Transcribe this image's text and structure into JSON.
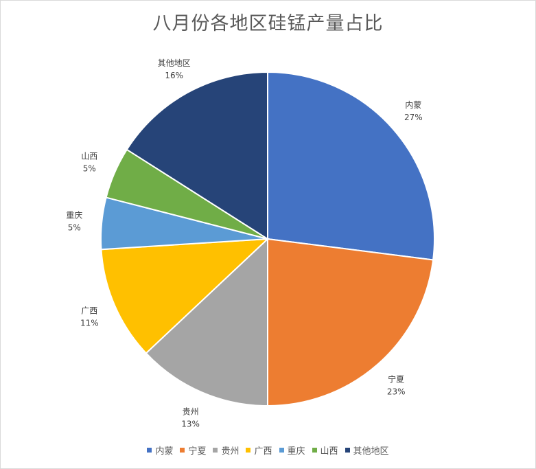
{
  "chart_data": {
    "type": "pie",
    "title": "八月份各地区硅锰产量占比",
    "categories": [
      "内蒙",
      "宁夏",
      "贵州",
      "广西",
      "重庆",
      "山西",
      "其他地区"
    ],
    "values": [
      27,
      23,
      13,
      11,
      5,
      5,
      16
    ],
    "value_labels": [
      "27%",
      "23%",
      "13%",
      "11%",
      "5%",
      "5%",
      "16%"
    ],
    "colors": [
      "#4472C4",
      "#ED7D31",
      "#A5A5A5",
      "#FFC000",
      "#5B9BD5",
      "#70AD47",
      "#264478"
    ],
    "legend_position": "bottom"
  }
}
